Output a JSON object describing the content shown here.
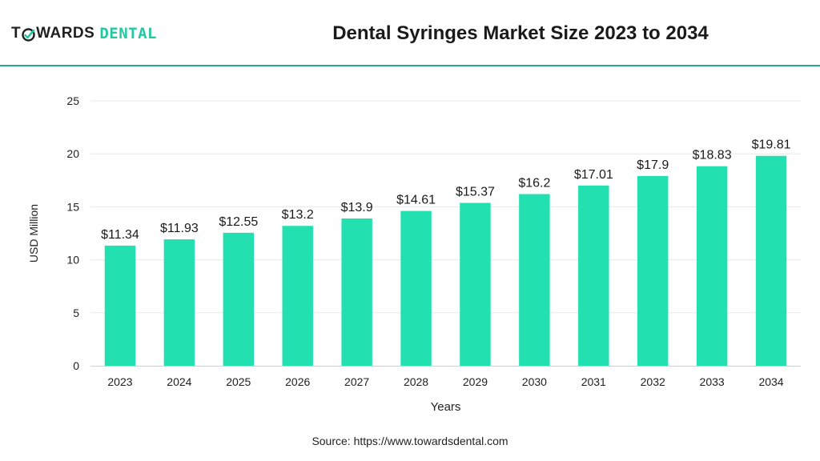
{
  "brand": {
    "word1_part1": "T",
    "word1_part2": "WARDS",
    "word2": "DENTAL",
    "accent": "#22c9a0",
    "dark": "#1f1f1f"
  },
  "header": {
    "title": "Dental Syringes Market Size 2023 to 2034"
  },
  "source": "Source: https://www.towardsdental.com",
  "chart_data": {
    "type": "bar",
    "title": "Dental Syringes Market Size 2023 to 2034",
    "xlabel": "Years",
    "ylabel": "USD Million",
    "ylim": [
      0,
      25
    ],
    "yticks": [
      0,
      5,
      10,
      15,
      20,
      25
    ],
    "categories": [
      "2023",
      "2024",
      "2025",
      "2026",
      "2027",
      "2028",
      "2029",
      "2030",
      "2031",
      "2032",
      "2033",
      "2034"
    ],
    "values": [
      11.34,
      11.93,
      12.55,
      13.2,
      13.9,
      14.61,
      15.37,
      16.2,
      17.01,
      17.9,
      18.83,
      19.81
    ],
    "labels": [
      "$11.34",
      "$11.93",
      "$12.55",
      "$13.2",
      "$13.9",
      "$14.61",
      "$15.37",
      "$16.2",
      "$17.01",
      "$17.9",
      "$18.83",
      "$19.81"
    ],
    "bar_color": "#22e0b0",
    "grid": true
  }
}
